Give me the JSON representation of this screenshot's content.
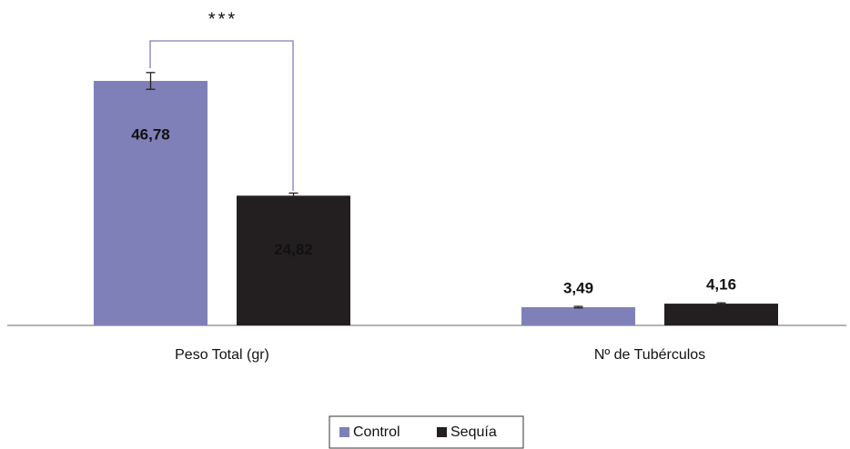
{
  "chart_data": {
    "type": "bar",
    "categories": [
      "Peso Total (gr)",
      "Nº de Tubérculos"
    ],
    "series": [
      {
        "name": "Control",
        "color": "#8080b8",
        "label_color": "#222222",
        "values": [
          46.78,
          3.49
        ],
        "value_labels": [
          "46,78",
          "3,49"
        ],
        "errors": [
          1.6,
          0.15
        ]
      },
      {
        "name": "Sequía",
        "color": "#231f20",
        "label_color": "#ffffff",
        "values": [
          24.82,
          4.16
        ],
        "value_labels": [
          "24,82",
          "4,16"
        ],
        "errors": [
          0.5,
          0.15
        ]
      }
    ],
    "annotation": "***",
    "legend": "bottom"
  }
}
